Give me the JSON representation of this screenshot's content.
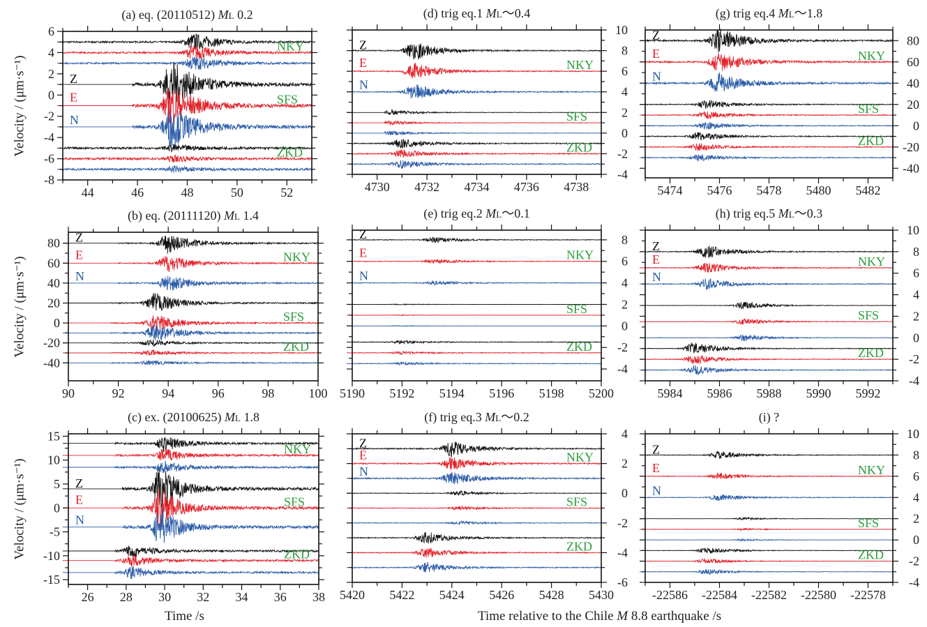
{
  "axes": {
    "ylabel": "Velocity / (μm·s⁻¹)",
    "xlabel_left": "Time /s",
    "xlabel_right_pre": "Time relative to the Chile ",
    "xlabel_right_m": "M",
    "xlabel_right_post": " 8.8 earthquake /s"
  },
  "colors": {
    "Z": "#111111",
    "E": "#e3232c",
    "N": "#2b5ca8",
    "station": "#2e9e3e"
  },
  "channels": [
    "Z",
    "E",
    "N"
  ],
  "chart_data": [
    {
      "id": "a",
      "type": "line",
      "title": {
        "pre": "(a) eq. (20110512) ",
        "mag": "M",
        "sub": "L",
        "post": " 0.2"
      },
      "xlim": [
        43,
        53
      ],
      "xticks": [
        44,
        46,
        48,
        50,
        52
      ],
      "ylim": [
        -8,
        6
      ],
      "yticks": [
        6,
        4,
        2,
        0,
        -2,
        -4,
        -6,
        -8
      ],
      "yside": "left",
      "chan_group": 1,
      "stations": [
        {
          "name": "NKY",
          "offsets": [
            5,
            4,
            3
          ],
          "start": 43,
          "burst": 48.3,
          "amp": 0.8,
          "noise": 0.08
        },
        {
          "name": "SFS",
          "offsets": [
            1,
            -1,
            -3
          ],
          "start": 45.8,
          "burst": 47.4,
          "amp": 2.2,
          "noise": 0.15
        },
        {
          "name": "ZKD",
          "offsets": [
            -5,
            -6,
            -7
          ],
          "start": 43,
          "burst": 47.5,
          "amp": 0.3,
          "noise": 0.1
        }
      ]
    },
    {
      "id": "b",
      "type": "line",
      "title": {
        "pre": "(b) eq. (20111120) ",
        "mag": "M",
        "sub": "L",
        "post": " 1.4"
      },
      "xlim": [
        90,
        100
      ],
      "xticks": [
        90,
        92,
        94,
        96,
        98,
        100
      ],
      "ylim": [
        -58,
        91
      ],
      "yticks": [
        80,
        60,
        40,
        20,
        0,
        -20,
        -40
      ],
      "yside": "left",
      "chan_group": 0,
      "stations": [
        {
          "name": "NKY",
          "offsets": [
            80,
            60,
            40
          ],
          "start": 92,
          "burst": 94,
          "amp": 10,
          "noise": 0.6
        },
        {
          "name": "SFS",
          "offsets": [
            20,
            0,
            -10
          ],
          "start": 91.7,
          "burst": 93.5,
          "amp": 10,
          "noise": 0.6
        },
        {
          "name": "ZKD",
          "offsets": [
            -20,
            -30,
            -40
          ],
          "start": 91.7,
          "burst": 93.3,
          "amp": 3,
          "noise": 0.5
        }
      ]
    },
    {
      "id": "c",
      "type": "line",
      "title": {
        "pre": "(c) ex. (20100625) ",
        "mag": "M",
        "sub": "L",
        "post": " 1.8"
      },
      "xlim": [
        25,
        38
      ],
      "xticks": [
        26,
        28,
        30,
        32,
        34,
        36,
        38
      ],
      "ylim": [
        -16,
        15.5
      ],
      "yticks": [
        15,
        10,
        5,
        0,
        -5,
        -10,
        -15
      ],
      "yside": "left",
      "chan_group": 1,
      "stations": [
        {
          "name": "NKY",
          "offsets": [
            13.5,
            11,
            8.5
          ],
          "start": 27.4,
          "burst": 30,
          "amp": 1.6,
          "noise": 0.2
        },
        {
          "name": "SFS",
          "offsets": [
            4,
            0,
            -4
          ],
          "start": 27.8,
          "burst": 29.8,
          "amp": 5,
          "noise": 0.3
        },
        {
          "name": "ZKD",
          "offsets": [
            -9,
            -11,
            -13.5
          ],
          "start": 27.4,
          "burst": 28.3,
          "amp": 1.4,
          "noise": 0.2
        }
      ]
    },
    {
      "id": "d",
      "type": "line",
      "title": {
        "pre": "(d)  trig eq.1  ",
        "mag": "M",
        "sub": "L",
        "post": "～0.4"
      },
      "xlim": [
        4729,
        4739
      ],
      "xticks": [
        4730,
        4732,
        4734,
        4736,
        4738
      ],
      "ylim": [
        -4,
        10
      ],
      "yticks": [
        10,
        8,
        6,
        4,
        2,
        0,
        -2,
        -4
      ],
      "yside": "right",
      "chan_group": 0,
      "stations": [
        {
          "name": "NKY",
          "offsets": [
            8,
            6,
            4
          ],
          "start": 4729,
          "burst": 4731.5,
          "amp": 0.9,
          "noise": 0.05
        },
        {
          "name": "SFS",
          "offsets": [
            2,
            1,
            0
          ],
          "start": 4730.3,
          "burst": 4730.6,
          "amp": 0.25,
          "noise": 0.02
        },
        {
          "name": "ZKD",
          "offsets": [
            -1,
            -2,
            -3
          ],
          "start": 4729,
          "burst": 4731,
          "amp": 0.45,
          "noise": 0.05
        }
      ]
    },
    {
      "id": "e",
      "type": "line",
      "title": {
        "pre": "(e)  trig eq.2 ",
        "mag": "M",
        "sub": "L",
        "post": "～0.1"
      },
      "xlim": [
        5190,
        5200
      ],
      "xticks": [
        5190,
        5192,
        5194,
        5196,
        5198,
        5200
      ],
      "ylim": [
        -5.1,
        8.9
      ],
      "yticks": [
        8,
        6,
        4,
        2,
        0,
        -2,
        -4
      ],
      "yside": "right",
      "chan_group": 0,
      "stations": [
        {
          "name": "NKY",
          "offsets": [
            8,
            6,
            4
          ],
          "start": 5190,
          "burst": 5193.3,
          "amp": 0.25,
          "noise": 0.03
        },
        {
          "name": "SFS",
          "offsets": [
            2,
            1,
            0
          ],
          "start": 5190,
          "burst": 5192,
          "amp": 0.04,
          "noise": 0.01
        },
        {
          "name": "ZKD",
          "offsets": [
            -1.5,
            -2.5,
            -3.5
          ],
          "start": 5190,
          "burst": 5192,
          "amp": 0.15,
          "noise": 0.03
        }
      ]
    },
    {
      "id": "f",
      "type": "line",
      "title": {
        "pre": "(f)  trig eq.3 ",
        "mag": "M",
        "sub": "L",
        "post": "～0.2"
      },
      "xlim": [
        5420,
        5430
      ],
      "xticks": [
        5420,
        5422,
        5424,
        5426,
        5428,
        5430
      ],
      "ylim": [
        -6,
        4
      ],
      "yticks": [
        4,
        2,
        0,
        -2,
        -4,
        -6
      ],
      "yside": "right",
      "chan_group": 0,
      "stations": [
        {
          "name": "NKY",
          "offsets": [
            3,
            2,
            1
          ],
          "start": 5420,
          "burst": 5424,
          "amp": 0.5,
          "noise": 0.04
        },
        {
          "name": "SFS",
          "offsets": [
            0,
            -1,
            -2
          ],
          "start": 5420,
          "burst": 5424.3,
          "amp": 0.15,
          "noise": 0.02
        },
        {
          "name": "ZKD",
          "offsets": [
            -3,
            -4,
            -5
          ],
          "start": 5420,
          "burst": 5423,
          "amp": 0.4,
          "noise": 0.03
        }
      ]
    },
    {
      "id": "g",
      "type": "line",
      "title": {
        "pre": "(g)  trig eq.4 ",
        "mag": "M",
        "sub": "L",
        "post": "～1.8"
      },
      "xlim": [
        5473,
        5483
      ],
      "xticks": [
        5474,
        5476,
        5478,
        5480,
        5482
      ],
      "ylim": [
        -49,
        90
      ],
      "yticks": [
        80,
        60,
        40,
        20,
        0,
        -20,
        -40
      ],
      "yside": "right",
      "chan_group": 0,
      "stations": [
        {
          "name": "NKY",
          "offsets": [
            80,
            60,
            40
          ],
          "start": 5473,
          "burst": 5476,
          "amp": 11,
          "noise": 0.8
        },
        {
          "name": "SFS",
          "offsets": [
            20,
            10,
            0
          ],
          "start": 5473,
          "burst": 5475.5,
          "amp": 4,
          "noise": 0.4
        },
        {
          "name": "ZKD",
          "offsets": [
            -10,
            -20,
            -30
          ],
          "start": 5473,
          "burst": 5475.2,
          "amp": 4,
          "noise": 0.4
        }
      ]
    },
    {
      "id": "h",
      "type": "line",
      "title": {
        "pre": "(h)  trig eq.5 ",
        "mag": "M",
        "sub": "L",
        "post": "～0.3"
      },
      "xlim": [
        5983,
        5993
      ],
      "xticks": [
        5984,
        5986,
        5988,
        5990,
        5992
      ],
      "ylim": [
        -4,
        10
      ],
      "yticks": [
        10,
        8,
        6,
        4,
        2,
        0,
        -2,
        -4
      ],
      "yside": "right",
      "chan_group": 0,
      "stations": [
        {
          "name": "NKY",
          "offsets": [
            8,
            6.5,
            5
          ],
          "start": 5983,
          "burst": 5985.5,
          "amp": 0.6,
          "noise": 0.04
        },
        {
          "name": "SFS",
          "offsets": [
            3,
            1.5,
            0
          ],
          "start": 5983,
          "burst": 5987,
          "amp": 0.35,
          "noise": 0.02
        },
        {
          "name": "ZKD",
          "offsets": [
            -1,
            -2,
            -3
          ],
          "start": 5983,
          "burst": 5985,
          "amp": 0.55,
          "noise": 0.03
        }
      ]
    },
    {
      "id": "i",
      "type": "line",
      "title": {
        "pre": "(i) ?",
        "mag": "",
        "sub": "",
        "post": ""
      },
      "xlim": [
        -22587,
        -22577
      ],
      "xticks": [
        -22586,
        -22584,
        -22582,
        -22580,
        -22578
      ],
      "ylim": [
        -4,
        10
      ],
      "yticks": [
        10,
        8,
        6,
        4,
        2,
        0,
        -2,
        -4
      ],
      "yside": "right",
      "chan_group": 0,
      "stations": [
        {
          "name": "NKY",
          "offsets": [
            8,
            6,
            4
          ],
          "start": -22587,
          "burst": -22584,
          "amp": 0.35,
          "noise": 0.03
        },
        {
          "name": "SFS",
          "offsets": [
            2,
            1,
            0
          ],
          "start": -22587,
          "burst": -22583,
          "amp": 0.12,
          "noise": 0.01
        },
        {
          "name": "ZKD",
          "offsets": [
            -1,
            -2,
            -3
          ],
          "start": -22587,
          "burst": -22584.5,
          "amp": 0.3,
          "noise": 0.02
        }
      ]
    }
  ]
}
